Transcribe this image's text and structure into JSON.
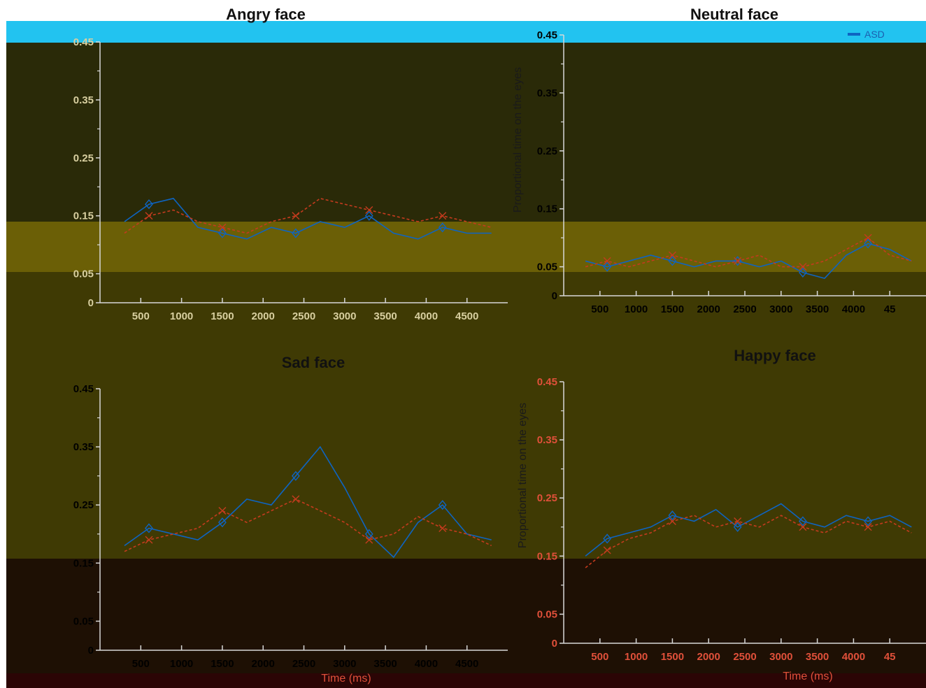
{
  "colors": {
    "asd": "#0e64c2",
    "td": "#c43b1e",
    "axis": "#d8d8d8",
    "tick_text_light": "#d8cfa0",
    "tick_text_dark": "#000000",
    "tick_text_red": "#e0503a"
  },
  "legend": {
    "asd_label": "ASD"
  },
  "y_axis_label": "Proportional time on the eyes",
  "x_axis_label": "Time (ms)",
  "panels": [
    {
      "id": "angry",
      "title": "Angry face",
      "yticks": [
        "0.45",
        "0.35",
        "0.25",
        "0.15",
        "0.05",
        "0"
      ],
      "xticks": [
        "500",
        "1000",
        "1500",
        "2000",
        "2500",
        "3000",
        "3500",
        "4000",
        "4500"
      ]
    },
    {
      "id": "neutral",
      "title": "Neutral face",
      "yticks": [
        "0.45",
        "0.35",
        "0.25",
        "0.15",
        "0.05",
        "0"
      ],
      "xticks": [
        "500",
        "1000",
        "1500",
        "2000",
        "2500",
        "3000",
        "3500",
        "4000",
        "45"
      ]
    },
    {
      "id": "sad",
      "title": "Sad face",
      "yticks": [
        "0.45",
        "0.35",
        "0.25",
        "0.15",
        "0.05",
        "0"
      ],
      "xticks": [
        "500",
        "1000",
        "1500",
        "2000",
        "2500",
        "3000",
        "3500",
        "4000",
        "4500"
      ]
    },
    {
      "id": "happy",
      "title": "Happy face",
      "yticks": [
        "0.45",
        "0.35",
        "0.25",
        "0.15",
        "0.05",
        "0"
      ],
      "xticks": [
        "500",
        "1000",
        "1500",
        "2000",
        "2500",
        "3000",
        "3500",
        "4000",
        "45"
      ]
    }
  ],
  "chart_data": [
    {
      "type": "line",
      "title": "Angry face",
      "xlabel": "",
      "ylabel": "",
      "ylim": [
        0,
        0.45
      ],
      "xlim": [
        0,
        5000
      ],
      "x": [
        300,
        600,
        900,
        1200,
        1500,
        1800,
        2100,
        2400,
        2700,
        3000,
        3300,
        3600,
        3900,
        4200,
        4500,
        4800
      ],
      "series": [
        {
          "name": "ASD",
          "values": [
            0.14,
            0.17,
            0.18,
            0.13,
            0.12,
            0.11,
            0.13,
            0.12,
            0.14,
            0.13,
            0.15,
            0.12,
            0.11,
            0.13,
            0.12,
            0.12
          ]
        },
        {
          "values": [
            0.12,
            0.15,
            0.16,
            0.14,
            0.13,
            0.12,
            0.14,
            0.15,
            0.18,
            0.17,
            0.16,
            0.15,
            0.14,
            0.15,
            0.14,
            0.13
          ]
        }
      ]
    },
    {
      "type": "line",
      "title": "Neutral face",
      "xlabel": "",
      "ylabel": "Proportional time on the eyes",
      "ylim": [
        0,
        0.45
      ],
      "xlim": [
        0,
        5000
      ],
      "x": [
        300,
        600,
        900,
        1200,
        1500,
        1800,
        2100,
        2400,
        2700,
        3000,
        3300,
        3600,
        3900,
        4200,
        4500,
        4800
      ],
      "series": [
        {
          "name": "ASD",
          "values": [
            0.06,
            0.05,
            0.06,
            0.07,
            0.06,
            0.05,
            0.06,
            0.06,
            0.05,
            0.06,
            0.04,
            0.03,
            0.07,
            0.09,
            0.08,
            0.06
          ]
        },
        {
          "values": [
            0.05,
            0.06,
            0.05,
            0.06,
            0.07,
            0.06,
            0.05,
            0.06,
            0.07,
            0.05,
            0.05,
            0.06,
            0.08,
            0.1,
            0.07,
            0.06
          ]
        }
      ]
    },
    {
      "type": "line",
      "title": "Sad face",
      "xlabel": "Time (ms)",
      "ylabel": "",
      "ylim": [
        0,
        0.45
      ],
      "xlim": [
        0,
        5000
      ],
      "x": [
        300,
        600,
        900,
        1200,
        1500,
        1800,
        2100,
        2400,
        2700,
        3000,
        3300,
        3600,
        3900,
        4200,
        4500,
        4800
      ],
      "series": [
        {
          "name": "ASD",
          "values": [
            0.18,
            0.21,
            0.2,
            0.19,
            0.22,
            0.26,
            0.25,
            0.3,
            0.35,
            0.28,
            0.2,
            0.16,
            0.22,
            0.25,
            0.2,
            0.19
          ]
        },
        {
          "values": [
            0.17,
            0.19,
            0.2,
            0.21,
            0.24,
            0.22,
            0.24,
            0.26,
            0.24,
            0.22,
            0.19,
            0.2,
            0.23,
            0.21,
            0.2,
            0.18
          ]
        }
      ]
    },
    {
      "type": "line",
      "title": "Happy face",
      "xlabel": "Time (ms)",
      "ylabel": "Proportional time on the eyes",
      "ylim": [
        0,
        0.45
      ],
      "xlim": [
        0,
        5000
      ],
      "x": [
        300,
        600,
        900,
        1200,
        1500,
        1800,
        2100,
        2400,
        2700,
        3000,
        3300,
        3600,
        3900,
        4200,
        4500,
        4800
      ],
      "series": [
        {
          "name": "ASD",
          "values": [
            0.15,
            0.18,
            0.19,
            0.2,
            0.22,
            0.21,
            0.23,
            0.2,
            0.22,
            0.24,
            0.21,
            0.2,
            0.22,
            0.21,
            0.22,
            0.2
          ]
        },
        {
          "values": [
            0.13,
            0.16,
            0.18,
            0.19,
            0.21,
            0.22,
            0.2,
            0.21,
            0.2,
            0.22,
            0.2,
            0.19,
            0.21,
            0.2,
            0.21,
            0.19
          ]
        }
      ]
    }
  ]
}
